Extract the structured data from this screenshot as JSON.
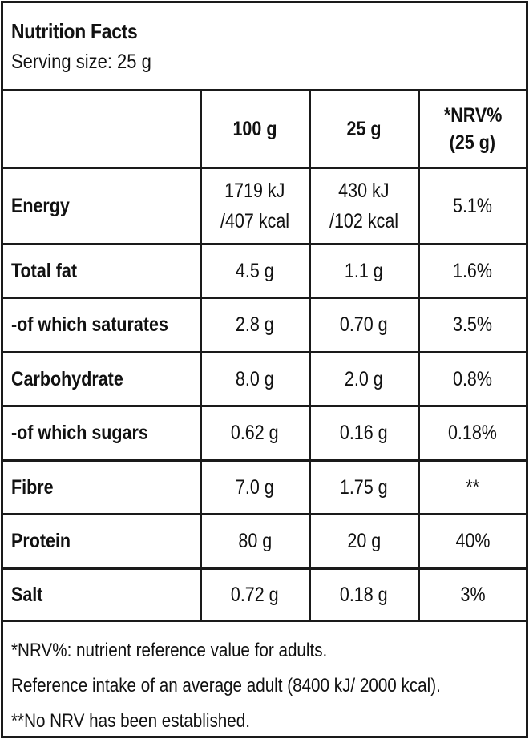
{
  "title": "Nutrition Facts",
  "serving": "Serving size: 25 g",
  "columns": [
    "",
    "100 g",
    "25 g",
    "*NRV%",
    "(25 g)"
  ],
  "rows": [
    {
      "name": "Energy",
      "per100_line1": "1719 kJ",
      "per100_line2": "/407 kcal",
      "per25_line1": "430 kJ",
      "per25_line2": "/102 kcal",
      "nrv": "5.1%"
    },
    {
      "name": "Total fat",
      "per100": "4.5 g",
      "per25": "1.1 g",
      "nrv": "1.6%"
    },
    {
      "name": " -of which saturates",
      "per100": "2.8 g",
      "per25": "0.70 g",
      "nrv": "3.5%"
    },
    {
      "name": "Carbohydrate",
      "per100": "8.0 g",
      "per25": "2.0 g",
      "nrv": "0.8%"
    },
    {
      "name": " -of which sugars",
      "per100": "0.62 g",
      "per25": "0.16 g",
      "nrv": "0.18%"
    },
    {
      "name": "Fibre",
      "per100": "7.0 g",
      "per25": "1.75 g",
      "nrv": "**"
    },
    {
      "name": "Protein",
      "per100": "80 g",
      "per25": "20 g",
      "nrv": "40%"
    },
    {
      "name": "Salt",
      "per100": "0.72 g",
      "per25": "0.18 g",
      "nrv": "3%"
    }
  ],
  "footnotes": [
    "*NRV%: nutrient reference value for adults.",
    "Reference intake of an average adult (8400 kJ/ 2000 kcal).",
    "**No NRV has been established."
  ]
}
